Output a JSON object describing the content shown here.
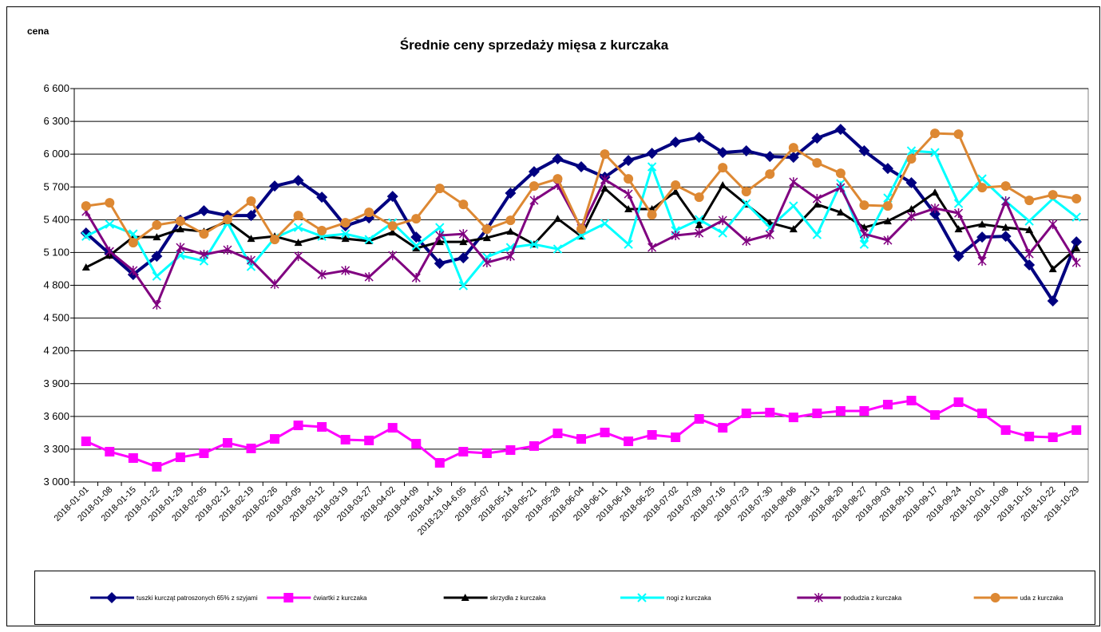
{
  "chart_data": {
    "type": "line",
    "title": "Średnie ceny sprzedaży mięsa z kurczaka",
    "y_label": "cena",
    "categories": [
      "2018-01-01",
      "2018-01-08",
      "2018-01-15",
      "2018-01-22",
      "2018-01-29",
      "2018-02-05",
      "2018-02-12",
      "2018-02-19",
      "2018-02-26",
      "2018-03-05",
      "2018-03-12",
      "2018-03-19",
      "2018-03-27",
      "2018-04-02",
      "2018-04-09",
      "2018-04-16",
      "2018-23.04-6.05",
      "2018-05-07",
      "2018-05-14",
      "2018-05-21",
      "2018-05-28",
      "2018-06-04",
      "2018-06-11",
      "2018-06-18",
      "2018-06-25",
      "2018-07-02",
      "2018-07-09",
      "2018-07-16",
      "2018-07-23",
      "2018-07-30",
      "2018-08-06",
      "2018-08-13",
      "2018-08-20",
      "2018-08-27",
      "2018-09-03",
      "2018-09-10",
      "2018-09-17",
      "2018-09-24",
      "2018-10-01",
      "2018-10-08",
      "2018-10-15",
      "2018-10-22",
      "2018-10-29"
    ],
    "ylim": [
      3000,
      6600
    ],
    "yticks": [
      {
        "value": 3000,
        "label": "3 000"
      },
      {
        "value": 3300,
        "label": "3 300"
      },
      {
        "value": 3600,
        "label": "3 600"
      },
      {
        "value": 3900,
        "label": "3 900"
      },
      {
        "value": 4200,
        "label": "4 200"
      },
      {
        "value": 4500,
        "label": "4 500"
      },
      {
        "value": 4800,
        "label": "4 800"
      },
      {
        "value": 5100,
        "label": "5 100"
      },
      {
        "value": 5400,
        "label": "5 400"
      },
      {
        "value": 5700,
        "label": "5 700"
      },
      {
        "value": 6000,
        "label": "6 000"
      },
      {
        "value": 6300,
        "label": "6 300"
      },
      {
        "value": 6600,
        "label": "6 600"
      }
    ],
    "grid": true,
    "legend": "bottom",
    "series": [
      {
        "name": "tuszki kurcząt patroszonych 65% z szyjami",
        "color": "#000080",
        "marker": "diamond",
        "values": [
          5278,
          5088,
          4898,
          5066,
          5394,
          5482,
          5438,
          5438,
          5708,
          5759,
          5606,
          5343,
          5416,
          5613,
          5241,
          5000,
          5051,
          5314,
          5643,
          5840,
          5957,
          5884,
          5789,
          5942,
          6008,
          6110,
          6154,
          6015,
          6030,
          5978,
          5971,
          6146,
          6227,
          6030,
          5869,
          5738,
          5453,
          5066,
          5241,
          5248,
          4986,
          4657,
          5197
        ]
      },
      {
        "name": "ćwiartki z kurczaka",
        "color": "#ff00ff",
        "marker": "square",
        "values": [
          3372,
          3277,
          3219,
          3139,
          3226,
          3263,
          3358,
          3307,
          3394,
          3518,
          3504,
          3387,
          3380,
          3496,
          3350,
          3175,
          3277,
          3263,
          3292,
          3329,
          3445,
          3394,
          3453,
          3372,
          3431,
          3409,
          3577,
          3496,
          3628,
          3635,
          3591,
          3628,
          3650,
          3650,
          3708,
          3745,
          3613,
          3730,
          3628,
          3475,
          3416,
          3409,
          3475
        ]
      },
      {
        "name": "skrzydła z kurczaka",
        "color": "#000000",
        "marker": "triangle",
        "values": [
          4964,
          5073,
          5241,
          5241,
          5314,
          5292,
          5387,
          5226,
          5248,
          5190,
          5248,
          5226,
          5205,
          5285,
          5139,
          5197,
          5197,
          5234,
          5292,
          5175,
          5409,
          5248,
          5686,
          5497,
          5497,
          5657,
          5351,
          5716,
          5540,
          5372,
          5314,
          5540,
          5467,
          5329,
          5387,
          5497,
          5650,
          5314,
          5358,
          5329,
          5307,
          4949,
          5139
        ]
      },
      {
        "name": "nogi z kurczaka",
        "color": "#00ffff",
        "marker": "x",
        "values": [
          5248,
          5358,
          5270,
          4883,
          5073,
          5022,
          5372,
          4971,
          5234,
          5329,
          5248,
          5270,
          5219,
          5372,
          5161,
          5329,
          4796,
          5058,
          5146,
          5175,
          5132,
          5256,
          5365,
          5175,
          5884,
          5300,
          5402,
          5278,
          5548,
          5329,
          5526,
          5263,
          5730,
          5175,
          5599,
          6030,
          6015,
          5548,
          5774,
          5570,
          5387,
          5592,
          5424
        ]
      },
      {
        "name": "podudzia z kurczaka",
        "color": "#800080",
        "marker": "star",
        "values": [
          5475,
          5110,
          4935,
          4621,
          5146,
          5081,
          5124,
          5029,
          4810,
          5066,
          4898,
          4935,
          4876,
          5073,
          4869,
          5256,
          5270,
          5008,
          5066,
          5577,
          5716,
          5321,
          5767,
          5635,
          5146,
          5256,
          5278,
          5394,
          5205,
          5263,
          5745,
          5592,
          5694,
          5270,
          5212,
          5431,
          5504,
          5460,
          5022,
          5570,
          5088,
          5358,
          5008
        ]
      },
      {
        "name": "uda z kurczaka",
        "color": "#dd8833",
        "marker": "circle",
        "values": [
          5526,
          5555,
          5190,
          5351,
          5387,
          5270,
          5402,
          5570,
          5219,
          5438,
          5300,
          5372,
          5467,
          5343,
          5409,
          5686,
          5540,
          5314,
          5394,
          5708,
          5774,
          5314,
          6000,
          5774,
          5445,
          5716,
          5606,
          5876,
          5657,
          5818,
          6059,
          5920,
          5825,
          5533,
          5526,
          5957,
          6190,
          6183,
          5694,
          5708,
          5577,
          5628,
          5592
        ]
      }
    ]
  }
}
